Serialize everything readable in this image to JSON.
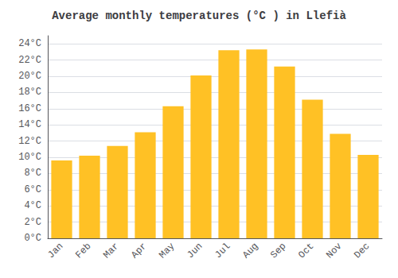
{
  "chart_data": {
    "type": "bar",
    "title": "Average monthly temperatures (°C ) in Llefià",
    "categories": [
      "Jan",
      "Feb",
      "Mar",
      "Apr",
      "May",
      "Jun",
      "Jul",
      "Aug",
      "Sep",
      "Oct",
      "Nov",
      "Dec"
    ],
    "values": [
      9.6,
      10.2,
      11.4,
      13.1,
      16.3,
      20.1,
      23.2,
      23.3,
      21.2,
      17.1,
      12.9,
      10.3
    ],
    "color": "#FFC125",
    "ylim": [
      0,
      25
    ],
    "yticks": [
      {
        "value": 0,
        "label": "0°C"
      },
      {
        "value": 2,
        "label": "2°C"
      },
      {
        "value": 4,
        "label": "4°C"
      },
      {
        "value": 6,
        "label": "6°C"
      },
      {
        "value": 8,
        "label": "8°C"
      },
      {
        "value": 10,
        "label": "10°C"
      },
      {
        "value": 12,
        "label": "12°C"
      },
      {
        "value": 14,
        "label": "14°C"
      },
      {
        "value": 16,
        "label": "16°C"
      },
      {
        "value": 18,
        "label": "18°C"
      },
      {
        "value": 20,
        "label": "20°C"
      },
      {
        "value": 22,
        "label": "22°C"
      },
      {
        "value": 24,
        "label": "24°C"
      }
    ],
    "grid": true
  }
}
